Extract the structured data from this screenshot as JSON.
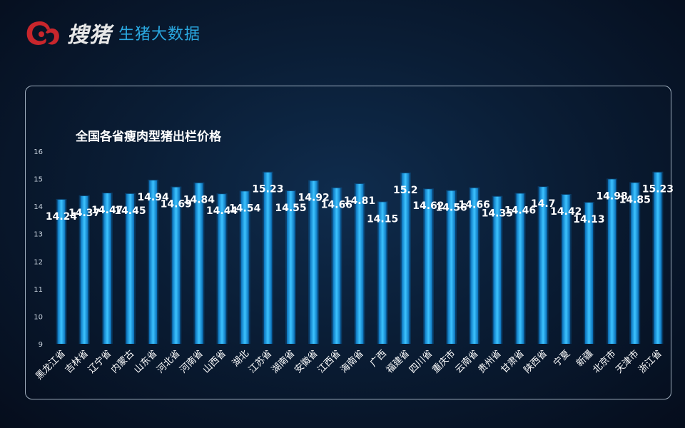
{
  "header": {
    "brand_name": "搜猪",
    "subtitle": "生猪大数据",
    "logo_icon": "pig-logo-icon"
  },
  "colors": {
    "bar": "#1aa6e8",
    "bar_glow": "#0a6fb8",
    "accent": "#2aa8e0",
    "logo": "#c8262c"
  },
  "chart_data": {
    "type": "bar",
    "title": "全国各省瘦肉型猪出栏价格",
    "xlabel": "",
    "ylabel": "",
    "ylim": [
      9,
      16
    ],
    "yticks": [
      "9",
      "10",
      "11",
      "12",
      "13",
      "14",
      "15",
      "16"
    ],
    "grid": false,
    "legend": "none",
    "categories": [
      "黑龙江省",
      "吉林省",
      "辽宁省",
      "内蒙古",
      "山东省",
      "河北省",
      "河南省",
      "山西省",
      "湖北",
      "江苏省",
      "湖南省",
      "安徽省",
      "江西省",
      "海南省",
      "广西",
      "福建省",
      "四川省",
      "重庆市",
      "云南省",
      "贵州省",
      "甘肃省",
      "陕西省",
      "宁夏",
      "新疆",
      "北京市",
      "天津市",
      "浙江省"
    ],
    "values": [
      14.24,
      14.37,
      14.47,
      14.45,
      14.94,
      14.69,
      14.84,
      14.44,
      14.54,
      15.23,
      14.55,
      14.92,
      14.66,
      14.81,
      14.15,
      15.2,
      14.62,
      14.56,
      14.66,
      14.35,
      14.46,
      14.7,
      14.42,
      14.13,
      14.98,
      14.85,
      15.23
    ],
    "value_labels": [
      "14.24",
      "14.37",
      "14.47",
      "14.45",
      "14.94",
      "14.69",
      "14.84",
      "14.44",
      "14.54",
      "15.23",
      "14.55",
      "14.92",
      "14.66",
      "14.81",
      "14.15",
      "15.2",
      "14.62",
      "14.56",
      "14.66",
      "14.35",
      "14.46",
      "14.7",
      "14.42",
      "14.13",
      "14.98",
      "14.85",
      "15.23"
    ]
  }
}
